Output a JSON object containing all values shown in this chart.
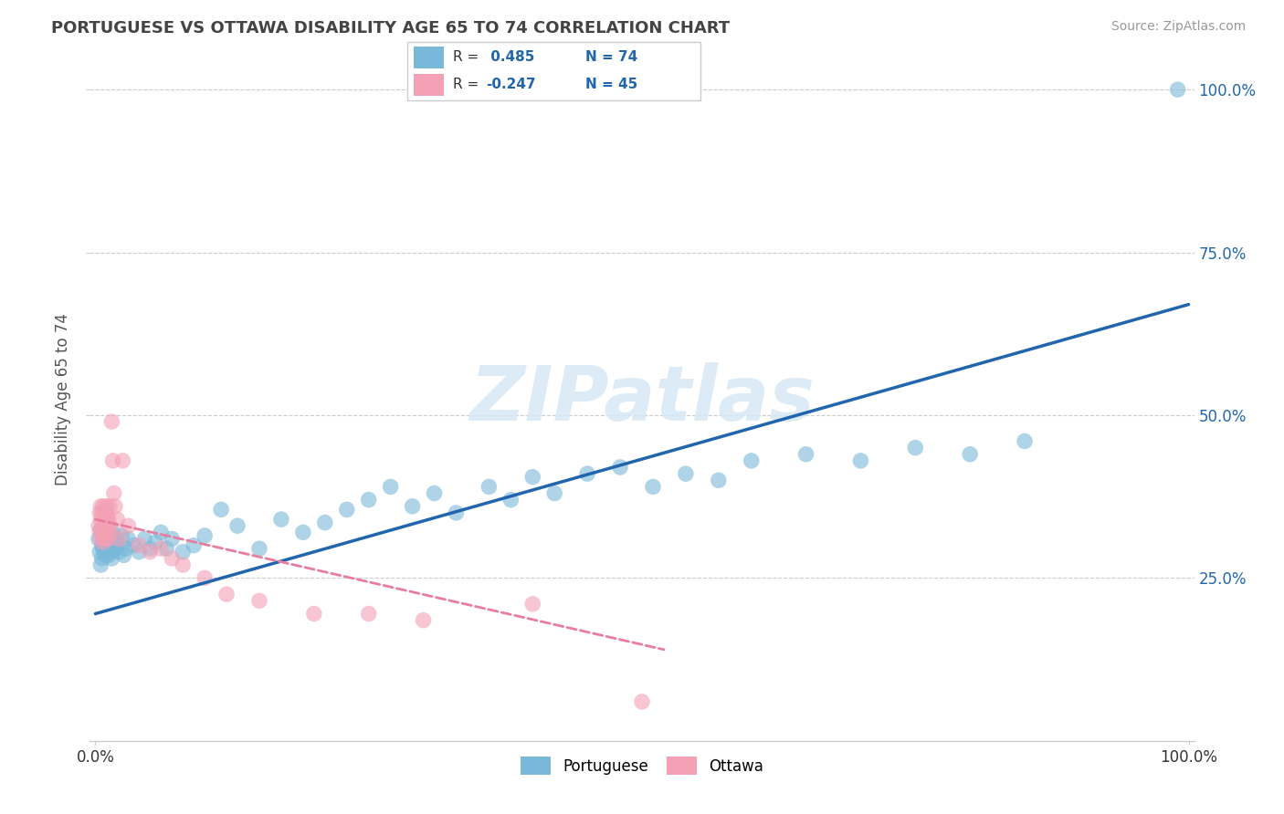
{
  "title": "PORTUGUESE VS OTTAWA DISABILITY AGE 65 TO 74 CORRELATION CHART",
  "source": "Source: ZipAtlas.com",
  "ylabel": "Disability Age 65 to 74",
  "blue_color": "#7ab8d9",
  "pink_color": "#f4a0b5",
  "line_blue": "#2166ac",
  "line_pink": "#e87da0",
  "watermark_text": "ZIPatlas",
  "legend_r1_label": "R = ",
  "legend_r1_val": " 0.485",
  "legend_n1_label": "N = ",
  "legend_n1_val": "74",
  "legend_r2_label": "R = ",
  "legend_r2_val": "-0.247",
  "legend_n2_label": "N = ",
  "legend_n2_val": "45",
  "portuguese_x": [
    0.003,
    0.004,
    0.005,
    0.005,
    0.006,
    0.006,
    0.007,
    0.007,
    0.008,
    0.008,
    0.009,
    0.009,
    0.01,
    0.01,
    0.011,
    0.011,
    0.012,
    0.012,
    0.013,
    0.013,
    0.014,
    0.014,
    0.015,
    0.015,
    0.016,
    0.016,
    0.017,
    0.018,
    0.019,
    0.02,
    0.022,
    0.024,
    0.026,
    0.028,
    0.03,
    0.035,
    0.04,
    0.045,
    0.05,
    0.055,
    0.06,
    0.065,
    0.07,
    0.08,
    0.09,
    0.1,
    0.115,
    0.13,
    0.15,
    0.17,
    0.19,
    0.21,
    0.23,
    0.25,
    0.27,
    0.29,
    0.31,
    0.33,
    0.36,
    0.38,
    0.4,
    0.42,
    0.45,
    0.48,
    0.51,
    0.54,
    0.57,
    0.6,
    0.65,
    0.7,
    0.75,
    0.8,
    0.85,
    0.99
  ],
  "portuguese_y": [
    0.31,
    0.29,
    0.325,
    0.27,
    0.3,
    0.28,
    0.315,
    0.295,
    0.31,
    0.29,
    0.305,
    0.285,
    0.32,
    0.3,
    0.295,
    0.31,
    0.285,
    0.315,
    0.3,
    0.29,
    0.305,
    0.315,
    0.28,
    0.31,
    0.29,
    0.32,
    0.305,
    0.295,
    0.31,
    0.3,
    0.29,
    0.315,
    0.285,
    0.295,
    0.31,
    0.3,
    0.29,
    0.31,
    0.295,
    0.305,
    0.32,
    0.295,
    0.31,
    0.29,
    0.3,
    0.315,
    0.355,
    0.33,
    0.295,
    0.34,
    0.32,
    0.335,
    0.355,
    0.37,
    0.39,
    0.36,
    0.38,
    0.35,
    0.39,
    0.37,
    0.405,
    0.38,
    0.41,
    0.42,
    0.39,
    0.41,
    0.4,
    0.43,
    0.44,
    0.43,
    0.45,
    0.44,
    0.46,
    1.0
  ],
  "ottawa_x": [
    0.003,
    0.004,
    0.004,
    0.005,
    0.005,
    0.005,
    0.006,
    0.006,
    0.007,
    0.007,
    0.007,
    0.008,
    0.008,
    0.009,
    0.009,
    0.01,
    0.01,
    0.011,
    0.011,
    0.012,
    0.012,
    0.013,
    0.013,
    0.014,
    0.015,
    0.016,
    0.017,
    0.018,
    0.02,
    0.022,
    0.025,
    0.03,
    0.04,
    0.05,
    0.06,
    0.07,
    0.08,
    0.1,
    0.12,
    0.15,
    0.2,
    0.25,
    0.3,
    0.4,
    0.5
  ],
  "ottawa_y": [
    0.33,
    0.32,
    0.35,
    0.31,
    0.34,
    0.36,
    0.325,
    0.35,
    0.305,
    0.33,
    0.36,
    0.34,
    0.32,
    0.35,
    0.31,
    0.335,
    0.36,
    0.32,
    0.345,
    0.31,
    0.34,
    0.33,
    0.36,
    0.32,
    0.49,
    0.43,
    0.38,
    0.36,
    0.34,
    0.31,
    0.43,
    0.33,
    0.3,
    0.29,
    0.295,
    0.28,
    0.27,
    0.25,
    0.225,
    0.215,
    0.195,
    0.195,
    0.185,
    0.21,
    0.06
  ],
  "blue_line_x": [
    0.0,
    1.0
  ],
  "blue_line_y": [
    0.195,
    0.67
  ],
  "pink_line_x": [
    0.0,
    0.52
  ],
  "pink_line_y": [
    0.34,
    0.14
  ],
  "xlim": [
    0.0,
    1.0
  ],
  "ylim_min": 0.0,
  "ylim_max": 1.05,
  "yticks": [
    0.25,
    0.5,
    0.75,
    1.0
  ],
  "ytick_labels": [
    "25.0%",
    "50.0%",
    "75.0%",
    "100.0%"
  ]
}
